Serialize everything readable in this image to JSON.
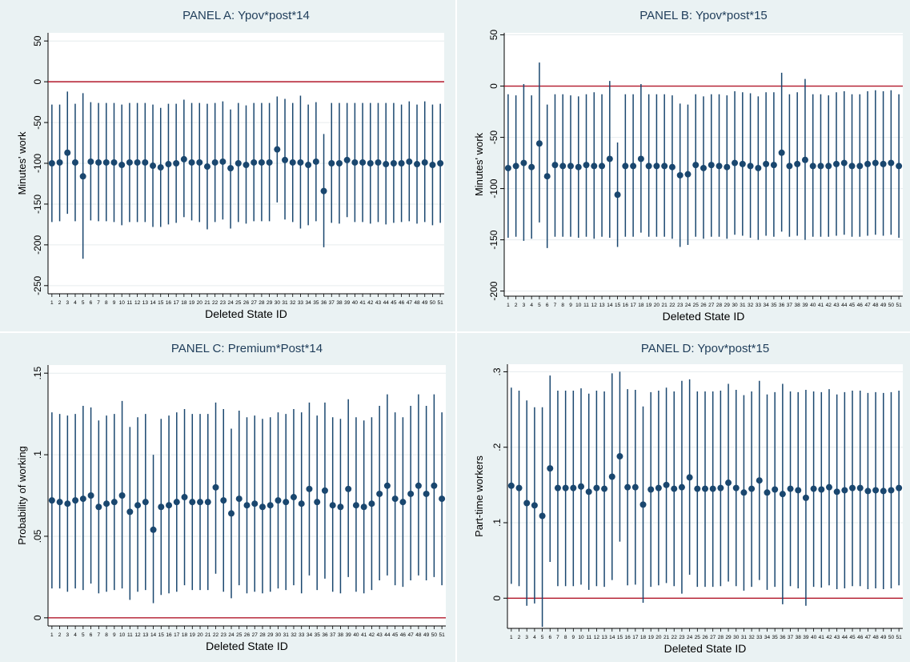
{
  "colors": {
    "panel_bg": "#eaf2f3",
    "plot_bg": "#ffffff",
    "marker": "#1a476f",
    "ci_line": "#1a476f",
    "zero_line": "#b2182b",
    "grid": "#e6ecee",
    "text": "#000000",
    "title_text": "#1f3d5a"
  },
  "chart_data": [
    {
      "id": "A",
      "type": "scatter",
      "title": "PANEL A: Ypov*post*14",
      "xlabel": "Deleted State ID",
      "ylabel": "Minutes' work",
      "categories": [
        "1",
        "2",
        "3",
        "4",
        "5",
        "6",
        "7",
        "8",
        "9",
        "10",
        "11",
        "12",
        "13",
        "14",
        "15",
        "16",
        "17",
        "18",
        "19",
        "20",
        "21",
        "22",
        "23",
        "24",
        "25",
        "26",
        "27",
        "28",
        "29",
        "30",
        "31",
        "32",
        "33",
        "34",
        "35",
        "36",
        "37",
        "38",
        "39",
        "40",
        "41",
        "42",
        "43",
        "44",
        "45",
        "46",
        "47",
        "48",
        "49",
        "50",
        "51"
      ],
      "ylim": [
        -260,
        60
      ],
      "yticks": [
        50,
        0,
        -50,
        -100,
        -150,
        -200,
        -250
      ],
      "ytick_labels": [
        "50",
        "0",
        "-50",
        "-100",
        "-150",
        "-200",
        "-250"
      ],
      "grid": true,
      "zero_line": 0,
      "estimate": [
        -100,
        -99,
        -87,
        -99,
        -116,
        -98,
        -99,
        -99,
        -99,
        -102,
        -99,
        -99,
        -99,
        -103,
        -105,
        -101,
        -100,
        -95,
        -99,
        -99,
        -104,
        -99,
        -98,
        -106,
        -100,
        -102,
        -99,
        -99,
        -99,
        -83,
        -96,
        -99,
        -99,
        -102,
        -98,
        -134,
        -100,
        -100,
        -96,
        -99,
        -99,
        -100,
        -99,
        -101,
        -100,
        -100,
        -98,
        -101,
        -99,
        -102,
        -100
      ],
      "ci_upper": [
        -28,
        -28,
        -12,
        -27,
        -14,
        -25,
        -26,
        -26,
        -26,
        -28,
        -26,
        -26,
        -26,
        -28,
        -32,
        -27,
        -27,
        -22,
        -26,
        -26,
        -27,
        -26,
        -24,
        -34,
        -26,
        -29,
        -26,
        -26,
        -26,
        -18,
        -21,
        -26,
        -17,
        -28,
        -25,
        -64,
        -26,
        -26,
        -26,
        -26,
        -26,
        -26,
        -26,
        -26,
        -26,
        -28,
        -24,
        -28,
        -24,
        -28,
        -27
      ],
      "ci_lower": [
        -172,
        -171,
        -162,
        -171,
        -217,
        -170,
        -171,
        -171,
        -172,
        -176,
        -172,
        -172,
        -172,
        -178,
        -178,
        -175,
        -173,
        -166,
        -170,
        -172,
        -181,
        -172,
        -169,
        -180,
        -172,
        -174,
        -171,
        -171,
        -171,
        -148,
        -169,
        -172,
        -180,
        -176,
        -171,
        -203,
        -173,
        -174,
        -166,
        -172,
        -172,
        -174,
        -172,
        -175,
        -173,
        -172,
        -171,
        -174,
        -172,
        -176,
        -173
      ]
    },
    {
      "id": "B",
      "type": "scatter",
      "title": "PANEL B: Ypov*post*15",
      "xlabel": "Deleted State ID",
      "ylabel": "Minutes' work",
      "categories": [
        "1",
        "2",
        "3",
        "4",
        "5",
        "6",
        "7",
        "8",
        "9",
        "10",
        "11",
        "12",
        "13",
        "14",
        "15",
        "16",
        "17",
        "18",
        "19",
        "20",
        "21",
        "22",
        "23",
        "24",
        "25",
        "26",
        "27",
        "28",
        "29",
        "30",
        "31",
        "32",
        "33",
        "34",
        "35",
        "36",
        "37",
        "38",
        "39",
        "40",
        "41",
        "42",
        "43",
        "44",
        "45",
        "46",
        "47",
        "48",
        "49",
        "50",
        "51"
      ],
      "ylim": [
        -205,
        52
      ],
      "yticks": [
        50,
        0,
        -50,
        -100,
        -150,
        -200
      ],
      "ytick_labels": [
        "50",
        "0",
        "-50",
        "-100",
        "-150",
        "-200"
      ],
      "grid": true,
      "zero_line": 0,
      "estimate": [
        -80,
        -78,
        -75,
        -79,
        -56,
        -88,
        -77,
        -78,
        -78,
        -79,
        -77,
        -78,
        -78,
        -71,
        -106,
        -78,
        -78,
        -71,
        -78,
        -78,
        -78,
        -79,
        -87,
        -86,
        -77,
        -80,
        -77,
        -78,
        -79,
        -75,
        -76,
        -78,
        -80,
        -76,
        -77,
        -65,
        -78,
        -76,
        -72,
        -78,
        -78,
        -78,
        -76,
        -75,
        -78,
        -78,
        -76,
        -75,
        -76,
        -75,
        -78
      ],
      "ci_upper": [
        -8,
        -9,
        2,
        -9,
        23,
        -18,
        -8,
        -8,
        -9,
        -10,
        -8,
        -6,
        -8,
        5,
        -55,
        -8,
        -8,
        2,
        -8,
        -8,
        -8,
        -9,
        -17,
        -18,
        -8,
        -10,
        -8,
        -8,
        -9,
        -5,
        -6,
        -7,
        -10,
        -6,
        -6,
        13,
        -8,
        -6,
        7,
        -8,
        -8,
        -9,
        -6,
        -5,
        -8,
        -8,
        -5,
        -4,
        -5,
        -4,
        -8
      ],
      "ci_lower": [
        -148,
        -147,
        -151,
        -149,
        -133,
        -158,
        -147,
        -147,
        -147,
        -148,
        -147,
        -149,
        -147,
        -148,
        -157,
        -147,
        -147,
        -143,
        -147,
        -147,
        -147,
        -149,
        -157,
        -155,
        -147,
        -149,
        -147,
        -147,
        -149,
        -145,
        -146,
        -148,
        -150,
        -146,
        -147,
        -142,
        -147,
        -146,
        -150,
        -147,
        -147,
        -147,
        -146,
        -145,
        -147,
        -147,
        -146,
        -145,
        -146,
        -145,
        -148
      ]
    },
    {
      "id": "C",
      "type": "scatter",
      "title": "PANEL C: Premium*Post*14",
      "xlabel": "Deleted State ID",
      "ylabel": "Probability of working",
      "categories": [
        "1",
        "2",
        "3",
        "4",
        "5",
        "6",
        "7",
        "8",
        "9",
        "10",
        "11",
        "12",
        "13",
        "14",
        "15",
        "16",
        "17",
        "18",
        "19",
        "20",
        "21",
        "22",
        "23",
        "24",
        "25",
        "26",
        "27",
        "28",
        "29",
        "30",
        "31",
        "32",
        "33",
        "34",
        "35",
        "36",
        "37",
        "38",
        "39",
        "40",
        "41",
        "42",
        "43",
        "44",
        "45",
        "46",
        "47",
        "48",
        "49",
        "50",
        "51"
      ],
      "ylim": [
        -0.005,
        0.155
      ],
      "yticks": [
        0,
        0.05,
        0.1,
        0.15
      ],
      "ytick_labels": [
        "0",
        ".05",
        ".1",
        ".15"
      ],
      "grid": true,
      "zero_line": 0,
      "estimate": [
        0.072,
        0.071,
        0.07,
        0.072,
        0.073,
        0.075,
        0.068,
        0.07,
        0.071,
        0.075,
        0.065,
        0.069,
        0.071,
        0.054,
        0.068,
        0.069,
        0.071,
        0.074,
        0.071,
        0.071,
        0.071,
        0.08,
        0.072,
        0.064,
        0.073,
        0.069,
        0.07,
        0.068,
        0.069,
        0.072,
        0.071,
        0.074,
        0.07,
        0.079,
        0.071,
        0.078,
        0.069,
        0.068,
        0.079,
        0.069,
        0.068,
        0.07,
        0.076,
        0.081,
        0.073,
        0.071,
        0.076,
        0.081,
        0.076,
        0.081,
        0.073
      ],
      "ci_upper": [
        0.126,
        0.125,
        0.124,
        0.125,
        0.13,
        0.129,
        0.121,
        0.124,
        0.125,
        0.133,
        0.117,
        0.123,
        0.125,
        0.1,
        0.122,
        0.124,
        0.126,
        0.128,
        0.125,
        0.125,
        0.125,
        0.132,
        0.128,
        0.116,
        0.127,
        0.123,
        0.124,
        0.122,
        0.123,
        0.126,
        0.125,
        0.128,
        0.126,
        0.132,
        0.124,
        0.132,
        0.123,
        0.122,
        0.134,
        0.123,
        0.121,
        0.123,
        0.13,
        0.137,
        0.126,
        0.123,
        0.13,
        0.137,
        0.13,
        0.137,
        0.126
      ],
      "ci_lower": [
        0.018,
        0.018,
        0.016,
        0.018,
        0.017,
        0.021,
        0.015,
        0.016,
        0.017,
        0.018,
        0.011,
        0.016,
        0.017,
        0.009,
        0.014,
        0.015,
        0.016,
        0.02,
        0.017,
        0.017,
        0.017,
        0.027,
        0.016,
        0.012,
        0.02,
        0.015,
        0.016,
        0.015,
        0.016,
        0.018,
        0.017,
        0.02,
        0.015,
        0.026,
        0.017,
        0.024,
        0.016,
        0.015,
        0.025,
        0.016,
        0.015,
        0.017,
        0.023,
        0.026,
        0.02,
        0.019,
        0.023,
        0.026,
        0.023,
        0.025,
        0.02
      ]
    },
    {
      "id": "D",
      "type": "scatter",
      "title": "PANEL D: Ypov*post*15",
      "xlabel": "Deleted State ID",
      "ylabel": "Part-time workers",
      "categories": [
        "1",
        "2",
        "3",
        "4",
        "5",
        "6",
        "7",
        "8",
        "9",
        "10",
        "11",
        "12",
        "13",
        "14",
        "15",
        "16",
        "17",
        "18",
        "19",
        "20",
        "21",
        "22",
        "23",
        "24",
        "25",
        "26",
        "27",
        "28",
        "29",
        "30",
        "31",
        "32",
        "33",
        "34",
        "35",
        "36",
        "37",
        "38",
        "39",
        "40",
        "41",
        "42",
        "43",
        "44",
        "45",
        "46",
        "47",
        "48",
        "49",
        "50",
        "51"
      ],
      "ylim": [
        -0.04,
        0.31
      ],
      "yticks": [
        0,
        0.1,
        0.2,
        0.3
      ],
      "ytick_labels": [
        "0",
        ".1",
        ".2",
        ".3"
      ],
      "grid": true,
      "zero_line": 0,
      "estimate": [
        0.149,
        0.146,
        0.126,
        0.123,
        0.109,
        0.172,
        0.146,
        0.146,
        0.146,
        0.148,
        0.141,
        0.146,
        0.145,
        0.161,
        0.188,
        0.147,
        0.147,
        0.124,
        0.144,
        0.146,
        0.15,
        0.145,
        0.147,
        0.16,
        0.145,
        0.145,
        0.145,
        0.146,
        0.153,
        0.146,
        0.14,
        0.145,
        0.156,
        0.14,
        0.144,
        0.138,
        0.145,
        0.143,
        0.133,
        0.145,
        0.144,
        0.147,
        0.141,
        0.143,
        0.146,
        0.146,
        0.142,
        0.143,
        0.142,
        0.143,
        0.146
      ],
      "ci_upper": [
        0.279,
        0.275,
        0.262,
        0.253,
        0.253,
        0.295,
        0.275,
        0.275,
        0.275,
        0.278,
        0.271,
        0.275,
        0.274,
        0.298,
        0.3,
        0.277,
        0.276,
        0.254,
        0.273,
        0.275,
        0.279,
        0.274,
        0.288,
        0.29,
        0.274,
        0.274,
        0.274,
        0.275,
        0.284,
        0.276,
        0.269,
        0.274,
        0.288,
        0.27,
        0.273,
        0.284,
        0.274,
        0.273,
        0.276,
        0.274,
        0.273,
        0.277,
        0.27,
        0.273,
        0.275,
        0.275,
        0.272,
        0.273,
        0.272,
        0.273,
        0.275
      ],
      "ci_lower": [
        0.019,
        0.016,
        -0.01,
        -0.007,
        -0.038,
        0.048,
        0.016,
        0.016,
        0.016,
        0.018,
        0.011,
        0.016,
        0.015,
        0.024,
        0.075,
        0.017,
        0.018,
        -0.006,
        0.015,
        0.017,
        0.02,
        0.016,
        0.006,
        0.031,
        0.015,
        0.015,
        0.015,
        0.016,
        0.022,
        0.016,
        0.01,
        0.015,
        0.024,
        0.011,
        0.015,
        -0.008,
        0.016,
        0.013,
        -0.01,
        0.015,
        0.014,
        0.017,
        0.012,
        0.013,
        0.016,
        0.016,
        0.012,
        0.013,
        0.012,
        0.013,
        0.017
      ]
    }
  ]
}
